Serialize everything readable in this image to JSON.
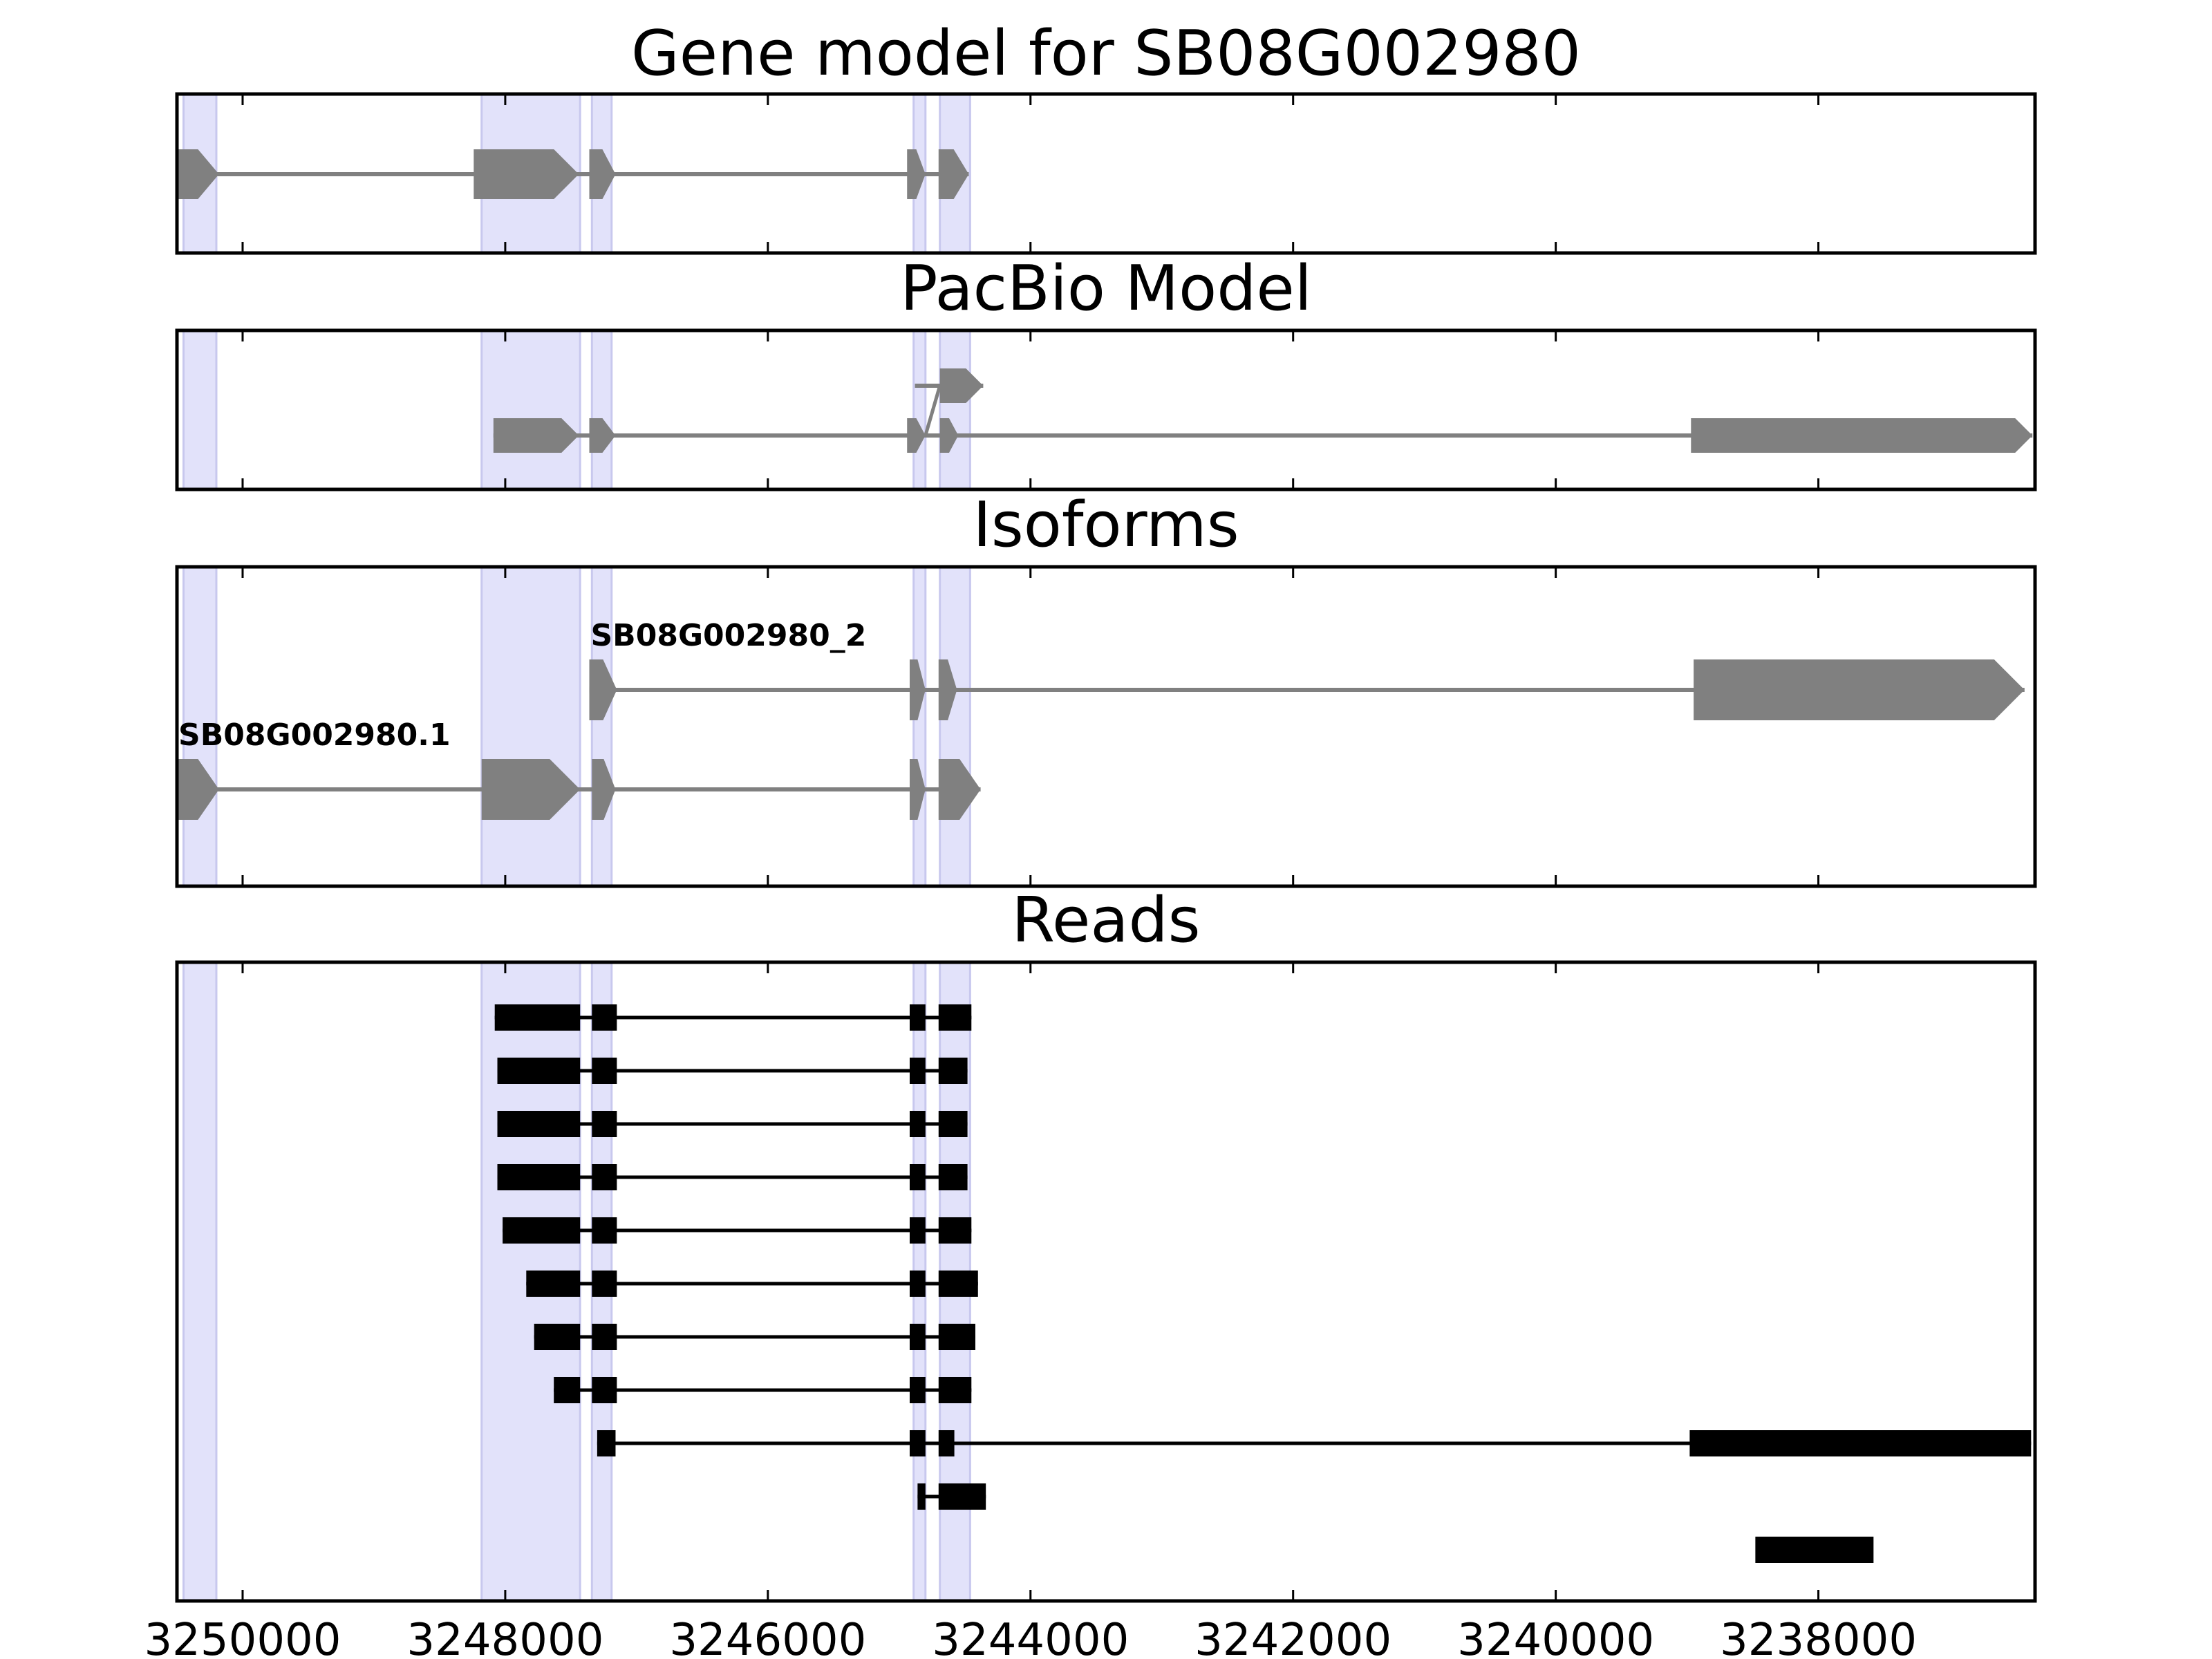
{
  "chart_data": {
    "type": "gene_model_tracks",
    "x_axis": {
      "xlim": [
        3250500,
        3236350
      ],
      "ticks": [
        3250000,
        3248000,
        3246000,
        3244000,
        3242000,
        3240000,
        3238000
      ],
      "tick_labels": [
        "3250000",
        "3248000",
        "3246000",
        "3244000",
        "3242000",
        "3240000",
        "3238000"
      ]
    },
    "highlight_color": "#e2e2fa",
    "highlights": [
      [
        3250450,
        3250200
      ],
      [
        3248180,
        3247430
      ],
      [
        3247340,
        3247190
      ],
      [
        3244890,
        3244800
      ],
      [
        3244690,
        3244460
      ]
    ],
    "model_color": "#808080",
    "read_color": "#000000",
    "panels": [
      {
        "id": "gene-model",
        "title": "Gene model for SB08G002980",
        "rows": 1,
        "transcripts": [
          {
            "label": "",
            "row": 0,
            "span": [
              3250500,
              3244470
            ],
            "exons": [
              [
                3250500,
                3250180
              ],
              [
                3248240,
                3247440
              ],
              [
                3247360,
                3247160
              ],
              [
                3244940,
                3244800
              ],
              [
                3244700,
                3244470
              ]
            ]
          }
        ]
      },
      {
        "id": "pacbio-model",
        "title": "PacBio Model",
        "rows": 2,
        "transcripts": [
          {
            "label": "",
            "row": 1,
            "span": [
              3248090,
              3236370
            ],
            "exons": [
              [
                3248090,
                3247440
              ],
              [
                3247360,
                3247160
              ],
              [
                3244940,
                3244800
              ],
              [
                3244690,
                3244550
              ],
              [
                3238970,
                3236370
              ]
            ]
          },
          {
            "label": "",
            "row": 0,
            "span": [
              3244880,
              3244360
            ],
            "link_from": [
              3244800,
              1
            ],
            "exons": [
              [
                3244690,
                3244360
              ]
            ]
          }
        ]
      },
      {
        "id": "isoforms",
        "title": "Isoforms",
        "rows": 2,
        "transcripts": [
          {
            "label": "SB08G002980_2",
            "row": 0,
            "span": [
              3247360,
              3236430
            ],
            "exons": [
              [
                3247360,
                3247150
              ],
              [
                3244920,
                3244800
              ],
              [
                3244700,
                3244560
              ],
              [
                3238950,
                3236430
              ]
            ]
          },
          {
            "label": "SB08G002980.1",
            "row": 1,
            "span": [
              3250500,
              3244380
            ],
            "exons": [
              [
                3250500,
                3250180
              ],
              [
                3248180,
                3247430
              ],
              [
                3247340,
                3247160
              ],
              [
                3244920,
                3244800
              ],
              [
                3244700,
                3244380
              ]
            ]
          }
        ]
      },
      {
        "id": "reads",
        "title": "Reads",
        "rows": 11,
        "reads": [
          {
            "exons": [
              [
                3248080,
                3247430
              ],
              [
                3247340,
                3247150
              ],
              [
                3244920,
                3244800
              ],
              [
                3244700,
                3244450
              ]
            ]
          },
          {
            "exons": [
              [
                3248060,
                3247430
              ],
              [
                3247340,
                3247150
              ],
              [
                3244920,
                3244800
              ],
              [
                3244700,
                3244480
              ]
            ]
          },
          {
            "exons": [
              [
                3248060,
                3247430
              ],
              [
                3247340,
                3247150
              ],
              [
                3244920,
                3244800
              ],
              [
                3244700,
                3244480
              ]
            ]
          },
          {
            "exons": [
              [
                3248060,
                3247430
              ],
              [
                3247340,
                3247150
              ],
              [
                3244920,
                3244800
              ],
              [
                3244700,
                3244480
              ]
            ]
          },
          {
            "exons": [
              [
                3248020,
                3247430
              ],
              [
                3247340,
                3247150
              ],
              [
                3244920,
                3244800
              ],
              [
                3244700,
                3244450
              ]
            ]
          },
          {
            "exons": [
              [
                3247840,
                3247430
              ],
              [
                3247340,
                3247150
              ],
              [
                3244920,
                3244800
              ],
              [
                3244700,
                3244400
              ]
            ]
          },
          {
            "exons": [
              [
                3247780,
                3247430
              ],
              [
                3247340,
                3247150
              ],
              [
                3244920,
                3244800
              ],
              [
                3244700,
                3244420
              ]
            ]
          },
          {
            "exons": [
              [
                3247630,
                3247430
              ],
              [
                3247340,
                3247150
              ],
              [
                3244920,
                3244800
              ],
              [
                3244700,
                3244450
              ]
            ]
          },
          {
            "exons": [
              [
                3247300,
                3247160
              ],
              [
                3244920,
                3244800
              ],
              [
                3244700,
                3244580
              ],
              [
                3238980,
                3236380
              ]
            ]
          },
          {
            "exons": [
              [
                3244860,
                3244800
              ],
              [
                3244700,
                3244340
              ]
            ]
          },
          {
            "exons": [
              [
                3238480,
                3237580
              ]
            ]
          }
        ]
      }
    ]
  }
}
